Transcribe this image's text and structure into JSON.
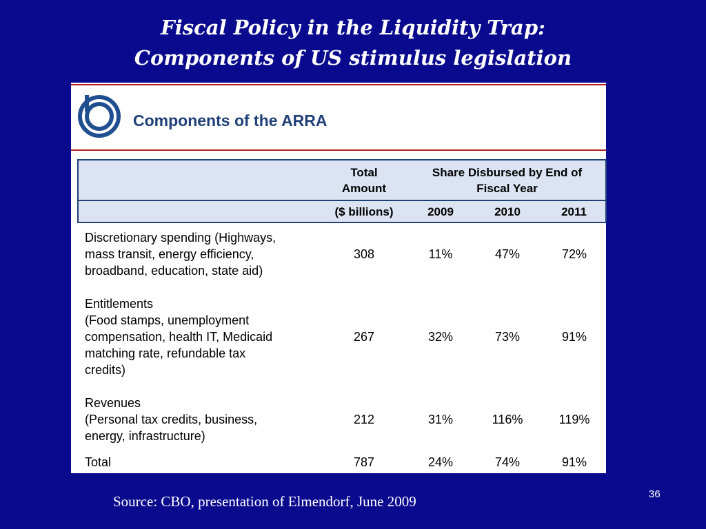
{
  "slide": {
    "title_line1": "Fiscal Policy in the Liquidity Trap:",
    "title_line2": "Components of US stimulus legislation",
    "source": "Source: CBO, presentation of Elmendorf, June 2009",
    "page_number": "36"
  },
  "panel": {
    "heading": "Components of the ARRA",
    "logo_icon": "cbo-logo-icon",
    "accent_color": "#b22222",
    "heading_color": "#1f3f78"
  },
  "table": {
    "header_total_line1": "Total",
    "header_total_line2": "Amount",
    "header_share_line1": "Share Disbursed by End of",
    "header_share_line2": "Fiscal Year",
    "header_units": "($ billions)",
    "header_years": [
      "2009",
      "2010",
      "2011"
    ],
    "rows": [
      {
        "lines": [
          "Discretionary spending (Highways,",
          "mass transit, energy efficiency,",
          "broadband, education, state aid)"
        ],
        "total": "308",
        "y2009": "11%",
        "y2010": "47%",
        "y2011": "72%"
      },
      {
        "lines": [
          "Entitlements",
          "(Food stamps, unemployment",
          "compensation, health IT, Medicaid",
          "matching rate, refundable tax",
          "credits)"
        ],
        "total": "267",
        "y2009": "32%",
        "y2010": "73%",
        "y2011": "91%"
      },
      {
        "lines": [
          "Revenues",
          "(Personal tax credits, business,",
          "energy, infrastructure)"
        ],
        "total": "212",
        "y2009": "31%",
        "y2010": "116%",
        "y2011": "119%"
      },
      {
        "lines": [
          "Total"
        ],
        "total": "787",
        "y2009": "24%",
        "y2010": "74%",
        "y2011": "91%"
      }
    ]
  }
}
